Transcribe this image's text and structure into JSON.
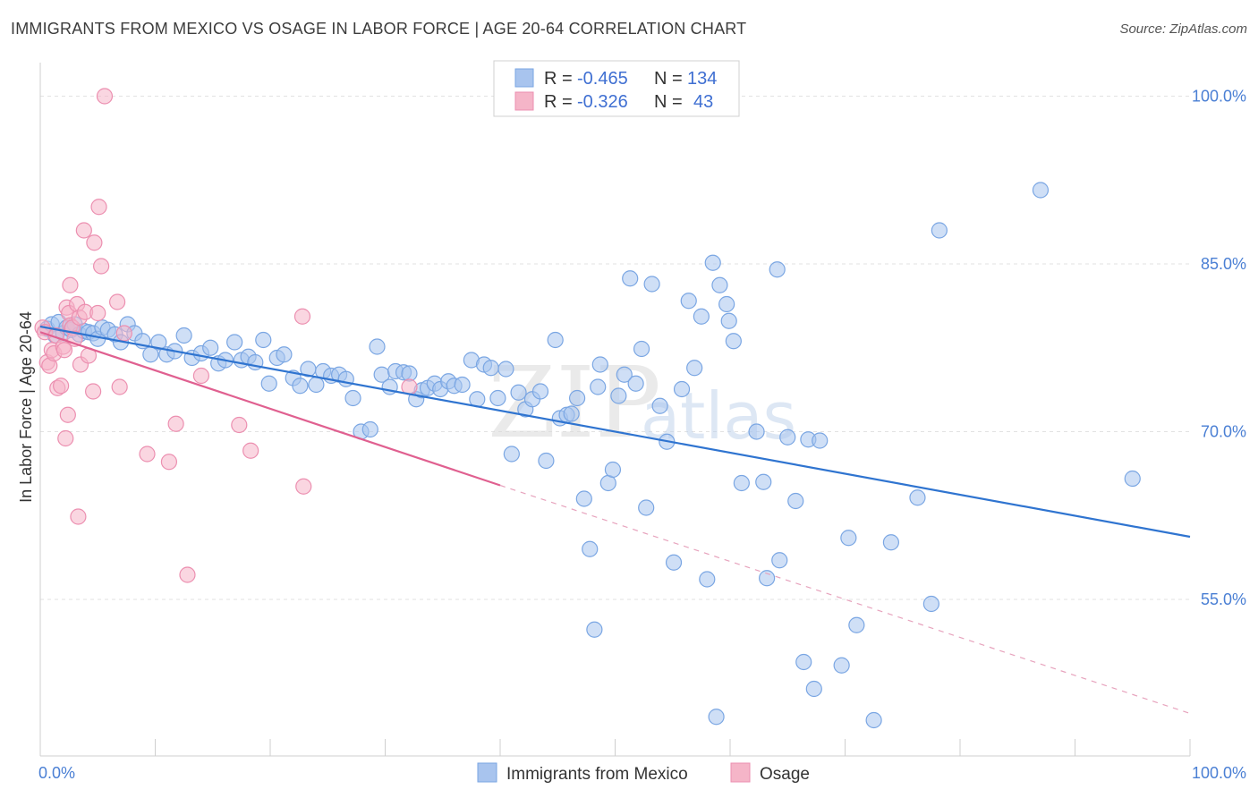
{
  "header": {
    "title": "IMMIGRANTS FROM MEXICO VS OSAGE IN LABOR FORCE | AGE 20-64 CORRELATION CHART",
    "source": "Source: ZipAtlas.com"
  },
  "watermark": {
    "zip": "ZIP",
    "atlas": "atlas"
  },
  "legend_top": {
    "rows": [
      {
        "r_label": "R =",
        "r_value": "-0.465",
        "n_label": "N =",
        "n_value": "134",
        "color": "#a8c4ee"
      },
      {
        "r_label": "R =",
        "r_value": "-0.326",
        "n_label": "N =",
        "n_value": "43",
        "color": "#f5b5c8"
      }
    ]
  },
  "legend_bottom": {
    "items": [
      {
        "label": "Immigrants from Mexico",
        "color": "#a8c4ee"
      },
      {
        "label": "Osage",
        "color": "#f5b5c8"
      }
    ]
  },
  "chart_data": {
    "type": "scatter",
    "ylabel": "In Labor Force | Age 20-64",
    "xlabel": "",
    "xlim": [
      0,
      100
    ],
    "ylim": [
      41,
      103
    ],
    "x_tick_labels": [
      {
        "value": 0,
        "label": "0.0%"
      },
      {
        "value": 100,
        "label": "100.0%"
      }
    ],
    "y_tick_labels": [
      {
        "value": 55,
        "label": "55.0%"
      },
      {
        "value": 70,
        "label": "70.0%"
      },
      {
        "value": 85,
        "label": "85.0%"
      },
      {
        "value": 100,
        "label": "100.0%"
      }
    ],
    "grid": true,
    "series": [
      {
        "name": "Immigrants from Mexico",
        "color": "#7aa6e3",
        "fill": "#a8c4ee",
        "trend": {
          "x0": 0,
          "y0": 79.4,
          "x1": 100,
          "y1": 60.6,
          "color": "#2f74d0"
        },
        "points": [
          [
            0.6,
            79.2
          ],
          [
            1.0,
            79.6
          ],
          [
            1.3,
            78.6
          ],
          [
            1.6,
            79.8
          ],
          [
            2.0,
            78.8
          ],
          [
            2.3,
            79.3
          ],
          [
            2.7,
            79.1
          ],
          [
            3.0,
            79.6
          ],
          [
            3.4,
            78.7
          ],
          [
            3.8,
            79.0
          ],
          [
            4.2,
            78.9
          ],
          [
            4.6,
            78.8
          ],
          [
            5.0,
            78.3
          ],
          [
            5.4,
            79.3
          ],
          [
            5.9,
            79.1
          ],
          [
            6.5,
            78.7
          ],
          [
            7.0,
            78.0
          ],
          [
            7.6,
            79.6
          ],
          [
            8.2,
            78.8
          ],
          [
            8.9,
            78.1
          ],
          [
            9.6,
            76.9
          ],
          [
            10.3,
            78.0
          ],
          [
            11.0,
            76.9
          ],
          [
            11.7,
            77.2
          ],
          [
            12.5,
            78.6
          ],
          [
            13.2,
            76.6
          ],
          [
            14.0,
            77.0
          ],
          [
            14.8,
            77.5
          ],
          [
            15.5,
            76.1
          ],
          [
            16.1,
            76.4
          ],
          [
            16.9,
            78.0
          ],
          [
            17.5,
            76.4
          ],
          [
            18.1,
            76.7
          ],
          [
            18.7,
            76.2
          ],
          [
            19.4,
            78.2
          ],
          [
            19.9,
            74.3
          ],
          [
            20.6,
            76.6
          ],
          [
            21.2,
            76.9
          ],
          [
            22.0,
            74.8
          ],
          [
            22.6,
            74.1
          ],
          [
            23.3,
            75.6
          ],
          [
            24.0,
            74.2
          ],
          [
            24.6,
            75.4
          ],
          [
            25.3,
            75.0
          ],
          [
            26.0,
            75.1
          ],
          [
            26.6,
            74.7
          ],
          [
            27.2,
            73.0
          ],
          [
            27.9,
            70.0
          ],
          [
            28.7,
            70.2
          ],
          [
            29.3,
            77.6
          ],
          [
            29.7,
            75.1
          ],
          [
            30.4,
            74.0
          ],
          [
            30.9,
            75.4
          ],
          [
            31.6,
            75.3
          ],
          [
            32.1,
            75.2
          ],
          [
            32.7,
            72.9
          ],
          [
            33.2,
            73.7
          ],
          [
            33.7,
            73.9
          ],
          [
            34.3,
            74.3
          ],
          [
            34.8,
            73.8
          ],
          [
            35.5,
            74.5
          ],
          [
            36.0,
            74.1
          ],
          [
            36.7,
            74.2
          ],
          [
            37.5,
            76.4
          ],
          [
            38.0,
            72.9
          ],
          [
            38.6,
            76.0
          ],
          [
            39.2,
            75.7
          ],
          [
            39.8,
            73.0
          ],
          [
            40.5,
            75.6
          ],
          [
            41.0,
            68.0
          ],
          [
            41.6,
            73.5
          ],
          [
            42.2,
            72.0
          ],
          [
            42.8,
            72.9
          ],
          [
            43.5,
            73.6
          ],
          [
            44.0,
            67.4
          ],
          [
            44.8,
            78.2
          ],
          [
            45.2,
            71.2
          ],
          [
            45.8,
            71.5
          ],
          [
            46.2,
            71.6
          ],
          [
            46.7,
            73.0
          ],
          [
            47.3,
            64.0
          ],
          [
            47.8,
            59.5
          ],
          [
            48.2,
            52.3
          ],
          [
            48.7,
            76.0
          ],
          [
            48.5,
            74.0
          ],
          [
            49.4,
            65.4
          ],
          [
            49.8,
            66.6
          ],
          [
            50.3,
            73.2
          ],
          [
            50.8,
            75.1
          ],
          [
            51.3,
            83.7
          ],
          [
            51.8,
            74.3
          ],
          [
            52.3,
            77.4
          ],
          [
            52.7,
            63.2
          ],
          [
            53.2,
            83.2
          ],
          [
            53.9,
            72.3
          ],
          [
            54.5,
            69.1
          ],
          [
            55.1,
            58.3
          ],
          [
            55.8,
            73.8
          ],
          [
            56.4,
            81.7
          ],
          [
            56.9,
            75.7
          ],
          [
            57.5,
            80.3
          ],
          [
            58.0,
            56.8
          ],
          [
            58.5,
            85.1
          ],
          [
            58.8,
            44.5
          ],
          [
            59.1,
            83.1
          ],
          [
            59.7,
            81.4
          ],
          [
            59.9,
            79.9
          ],
          [
            60.3,
            78.1
          ],
          [
            61.0,
            65.4
          ],
          [
            62.3,
            70.0
          ],
          [
            62.9,
            65.5
          ],
          [
            63.2,
            56.9
          ],
          [
            64.1,
            84.5
          ],
          [
            64.3,
            58.5
          ],
          [
            65.0,
            69.5
          ],
          [
            65.7,
            63.8
          ],
          [
            66.4,
            49.4
          ],
          [
            66.8,
            69.3
          ],
          [
            67.3,
            47.0
          ],
          [
            67.8,
            69.2
          ],
          [
            69.7,
            49.1
          ],
          [
            70.3,
            60.5
          ],
          [
            71.0,
            52.7
          ],
          [
            72.5,
            44.2
          ],
          [
            74.0,
            60.1
          ],
          [
            76.3,
            64.1
          ],
          [
            77.5,
            54.6
          ],
          [
            78.2,
            88.0
          ],
          [
            87.0,
            91.6
          ],
          [
            95.0,
            65.8
          ]
        ]
      },
      {
        "name": "Osage",
        "color": "#ec8fb0",
        "fill": "#f5b5c8",
        "trend": {
          "x0": 0,
          "y0": 78.9,
          "x1": 40,
          "y1": 65.2,
          "color": "#e06090"
        },
        "trend_dashed": {
          "x0": 40,
          "y0": 65.2,
          "x1": 100,
          "y1": 44.8,
          "color": "#e7a3bd"
        },
        "points": [
          [
            0.2,
            79.3
          ],
          [
            0.4,
            78.9
          ],
          [
            0.6,
            76.2
          ],
          [
            0.8,
            75.9
          ],
          [
            1.0,
            77.3
          ],
          [
            1.2,
            77.0
          ],
          [
            1.4,
            78.6
          ],
          [
            1.5,
            73.9
          ],
          [
            1.8,
            74.1
          ],
          [
            2.0,
            77.6
          ],
          [
            2.1,
            77.3
          ],
          [
            2.2,
            69.4
          ],
          [
            2.3,
            81.1
          ],
          [
            2.4,
            71.5
          ],
          [
            2.5,
            80.6
          ],
          [
            2.6,
            79.5
          ],
          [
            2.6,
            83.1
          ],
          [
            2.8,
            79.3
          ],
          [
            3.0,
            78.3
          ],
          [
            3.2,
            81.4
          ],
          [
            3.4,
            80.2
          ],
          [
            3.3,
            62.4
          ],
          [
            3.5,
            76.0
          ],
          [
            3.8,
            88.0
          ],
          [
            3.9,
            80.7
          ],
          [
            4.2,
            76.8
          ],
          [
            4.6,
            73.6
          ],
          [
            4.7,
            86.9
          ],
          [
            5.1,
            90.1
          ],
          [
            5.3,
            84.8
          ],
          [
            5.0,
            80.6
          ],
          [
            5.6,
            100.0
          ],
          [
            6.7,
            81.6
          ],
          [
            6.9,
            74.0
          ],
          [
            7.3,
            78.8
          ],
          [
            9.3,
            68.0
          ],
          [
            11.2,
            67.3
          ],
          [
            11.8,
            70.7
          ],
          [
            12.8,
            57.2
          ],
          [
            14.0,
            75.0
          ],
          [
            17.3,
            70.6
          ],
          [
            18.3,
            68.3
          ],
          [
            22.8,
            80.3
          ],
          [
            22.9,
            65.1
          ],
          [
            32.1,
            74.0
          ]
        ]
      }
    ]
  }
}
